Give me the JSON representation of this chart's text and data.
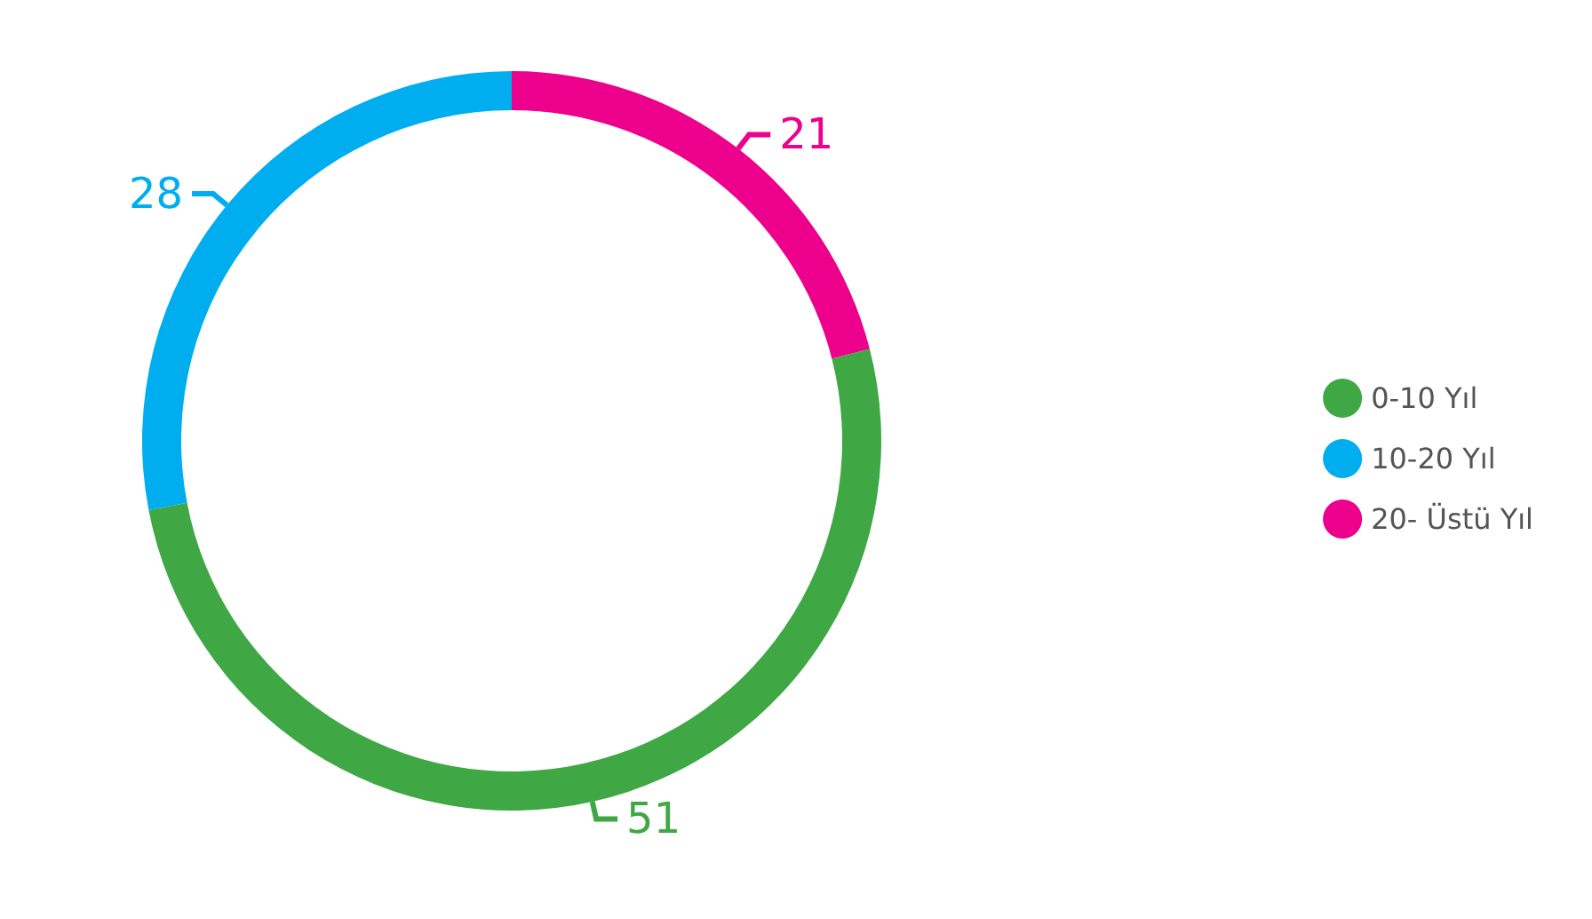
{
  "chart_data": {
    "type": "donut",
    "categories": [
      "0-10 Yıl",
      "10-20 Yıl",
      "20- Üstü Yıl"
    ],
    "values": [
      51,
      28,
      21
    ],
    "colors": [
      "#3fa845",
      "#00aeef",
      "#ec008c"
    ],
    "data_labels": true,
    "legend": "right"
  }
}
